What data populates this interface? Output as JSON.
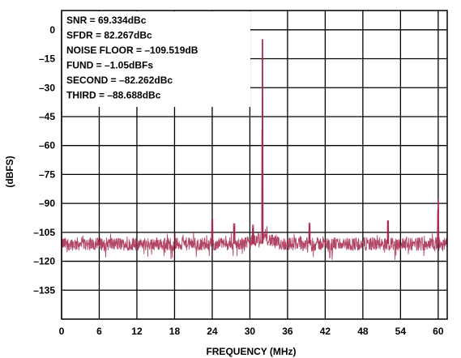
{
  "chart_data": {
    "type": "line",
    "title": "",
    "xlabel": "FREQUENCY (MHz)",
    "ylabel": "(dBFS)",
    "xlim": [
      0,
      61.44
    ],
    "ylim": [
      -150,
      10
    ],
    "x_ticks": [
      0,
      6,
      12,
      18,
      24,
      30,
      36,
      42,
      48,
      54,
      60
    ],
    "y_ticks": [
      0,
      -15,
      -30,
      -45,
      -60,
      -75,
      -90,
      -105,
      -120,
      -135
    ],
    "y_tick_labels": [
      "0",
      "–15",
      "–30",
      "–45",
      "–60",
      "–75",
      "–90",
      "–105",
      "–120",
      "–135"
    ],
    "grid": true,
    "annotations": [
      "SNR = 69.334dBc",
      "SFDR = 82.267dBc",
      "NOISE FLOOR = –109.519dB",
      "FUND = –1.05dBFs",
      "SECOND = –82.262dBc",
      "THIRD = –88.688dBc"
    ],
    "series": [
      {
        "color": "#a3264a",
        "noise_floor_dbfs": -111,
        "peaks": [
          {
            "x": 32.0,
            "y": -5
          },
          {
            "x": 60.0,
            "y": -88
          },
          {
            "x": 24.0,
            "y": -98
          },
          {
            "x": 27.5,
            "y": -102
          },
          {
            "x": 39.5,
            "y": -101
          },
          {
            "x": 52.0,
            "y": -99
          },
          {
            "x": 30.5,
            "y": -103
          }
        ]
      }
    ]
  }
}
